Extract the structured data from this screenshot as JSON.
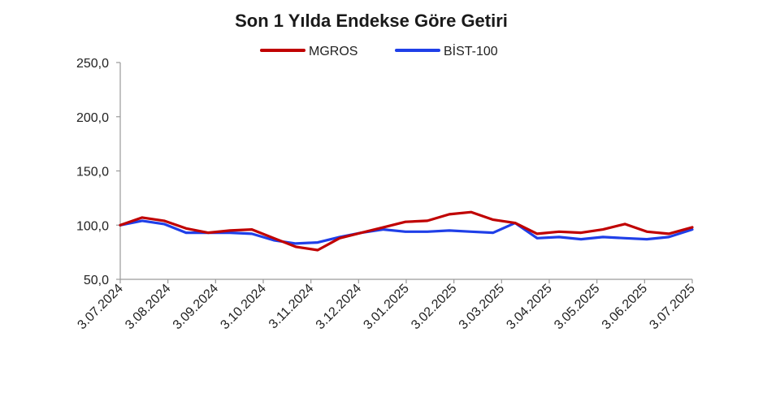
{
  "chart_data": {
    "type": "line",
    "title": "Son 1 Yılda Endekse Göre Getiri",
    "xlabel": "",
    "ylabel": "",
    "ylim": [
      50,
      250
    ],
    "y_ticks": [
      "50,0",
      "100,0",
      "150,0",
      "200,0",
      "250,0"
    ],
    "y_tick_values": [
      50,
      100,
      150,
      200,
      250
    ],
    "x_tick_labels": [
      "3.07.2024",
      "3.08.2024",
      "3.09.2024",
      "3.10.2024",
      "3.11.2024",
      "3.12.2024",
      "3.01.2025",
      "3.02.2025",
      "3.03.2025",
      "3.04.2025",
      "3.05.2025",
      "3.06.2025",
      "3.07.2025"
    ],
    "grid": false,
    "legend_position": "top",
    "x": [
      "2024-07-03",
      "2024-07-17",
      "2024-07-31",
      "2024-08-14",
      "2024-08-28",
      "2024-09-11",
      "2024-09-25",
      "2024-10-09",
      "2024-10-23",
      "2024-11-06",
      "2024-11-20",
      "2024-12-04",
      "2024-12-18",
      "2025-01-01",
      "2025-01-15",
      "2025-01-29",
      "2025-02-12",
      "2025-02-26",
      "2025-03-12",
      "2025-03-26",
      "2025-04-09",
      "2025-04-23",
      "2025-05-07",
      "2025-05-21",
      "2025-06-04",
      "2025-06-18",
      "2025-07-03"
    ],
    "series": [
      {
        "name": "MGROS",
        "color": "#c00000",
        "values": [
          100,
          107,
          104,
          97,
          93,
          95,
          96,
          88,
          80,
          77,
          88,
          93,
          98,
          103,
          104,
          110,
          112,
          105,
          102,
          92,
          94,
          93,
          96,
          101,
          94,
          92,
          98
        ]
      },
      {
        "name": "BİST-100",
        "color": "#1f3fe8",
        "values": [
          100,
          104,
          101,
          93,
          93,
          93,
          92,
          86,
          83,
          84,
          89,
          93,
          96,
          94,
          94,
          95,
          94,
          93,
          102,
          88,
          89,
          87,
          89,
          88,
          87,
          89,
          96
        ]
      }
    ]
  }
}
